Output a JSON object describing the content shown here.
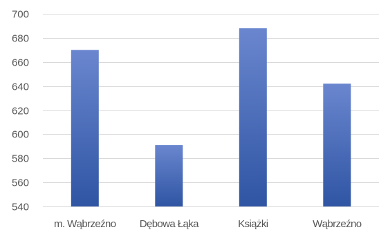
{
  "chart_data": {
    "type": "bar",
    "title": "",
    "xlabel": "",
    "ylabel": "",
    "categories": [
      "m. Wąbrzeźno",
      "Dębowa Łąka",
      "Książki",
      "Wąbrzeźno"
    ],
    "values": [
      670,
      591,
      688,
      642
    ],
    "ylim": [
      540,
      700
    ],
    "yticks": [
      540,
      560,
      580,
      600,
      620,
      640,
      660,
      680,
      700
    ],
    "grid": true,
    "legend": "none",
    "bar_color_top": "#6a86cf",
    "bar_color_bottom": "#2f55a3",
    "grid_color": "#d9d9d9",
    "text_color": "#555555"
  }
}
